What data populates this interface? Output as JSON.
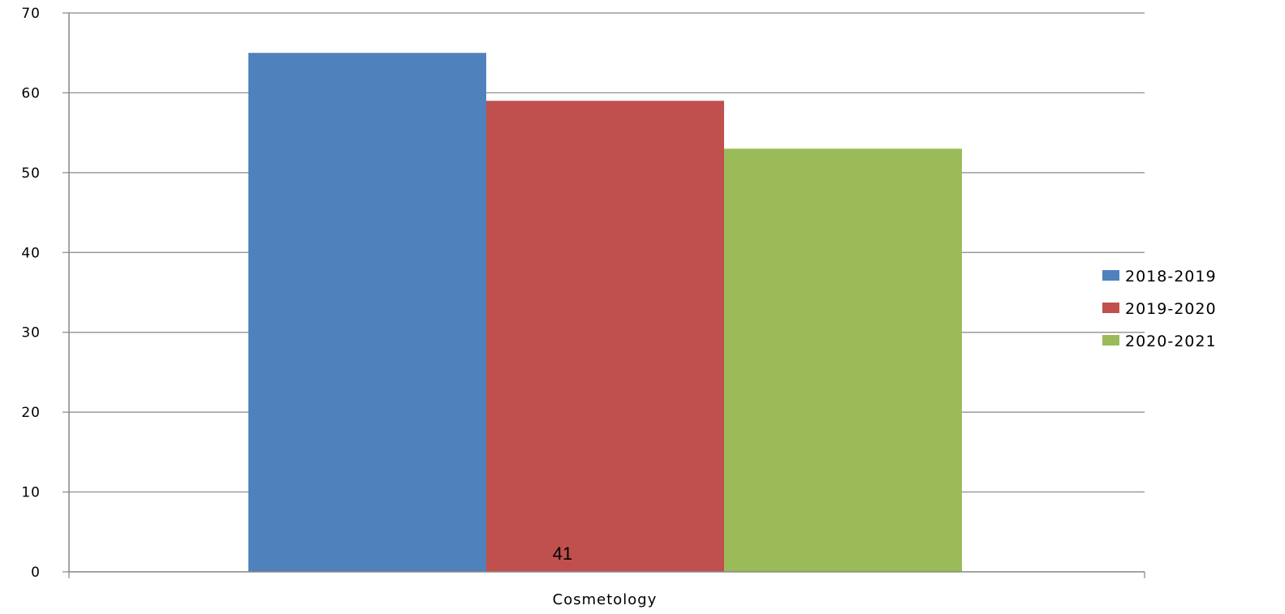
{
  "chart_data": {
    "type": "bar",
    "categories": [
      "Cosmetology"
    ],
    "series": [
      {
        "name": "2018-2019",
        "values": [
          65
        ],
        "color": "#4F81BD"
      },
      {
        "name": "2019-2020",
        "values": [
          59
        ],
        "color": "#C0504D"
      },
      {
        "name": "2020-2021",
        "values": [
          53
        ],
        "color": "#9BBB59"
      }
    ],
    "y_ticks": [
      "0",
      "10",
      "20",
      "30",
      "40",
      "50",
      "60",
      "70"
    ],
    "ylim": [
      0,
      70
    ],
    "grid": true,
    "legend_position": "right",
    "annotation": "41"
  }
}
